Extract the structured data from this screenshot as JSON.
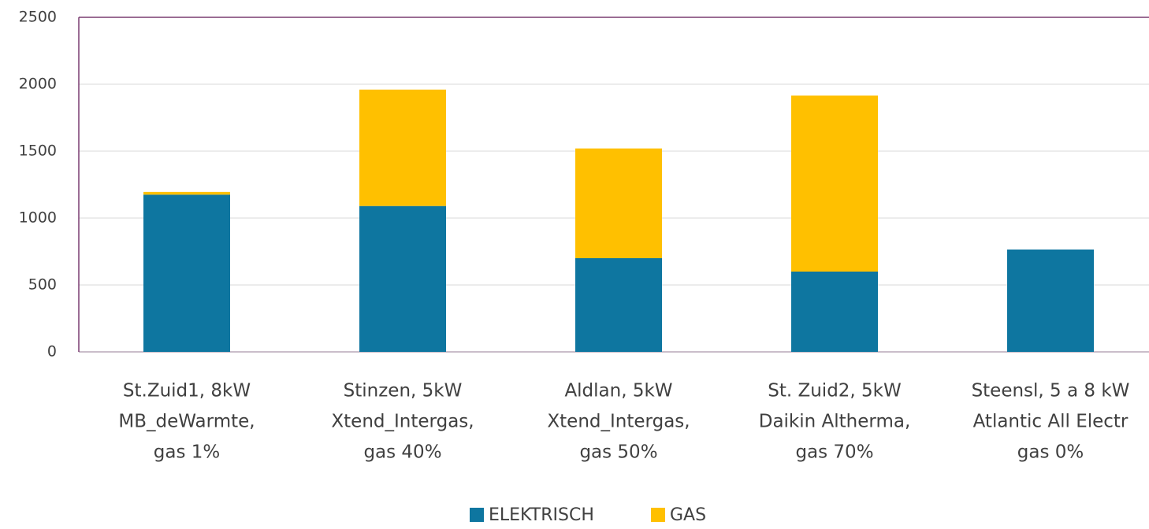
{
  "chart_data": {
    "type": "stacked_bar",
    "categories": [
      [
        "St.Zuid1,   8kW",
        "MB_deWarmte,",
        "gas 1%"
      ],
      [
        "Stinzen, 5kW",
        "Xtend_Intergas,",
        "gas 40%"
      ],
      [
        "Aldlan, 5kW",
        "Xtend_Intergas,",
        "gas 50%"
      ],
      [
        "St. Zuid2,   5kW",
        "Daikin Altherma,",
        "gas 70%"
      ],
      [
        "Steensl, 5 a 8 kW",
        "Atlantic All Electr",
        "gas 0%"
      ]
    ],
    "series": [
      {
        "name": "ELEKTRISCH",
        "color": "#0e76a0",
        "values": [
          1175,
          1090,
          700,
          600,
          765
        ]
      },
      {
        "name": "GAS",
        "color": "#ffc000",
        "values": [
          20,
          870,
          820,
          1315,
          0
        ]
      }
    ],
    "ylim": [
      0,
      2500
    ],
    "yticks": [
      0,
      500,
      1000,
      1500,
      2000,
      2500
    ],
    "grid": true,
    "legend": "bottom"
  }
}
